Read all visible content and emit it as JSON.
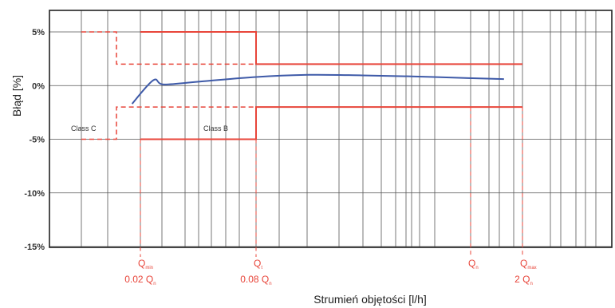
{
  "chart_data": {
    "type": "line",
    "xlabel": "Strumień objętości [l/h]",
    "ylabel": "Błąd [%]",
    "ylim": [
      -15,
      7
    ],
    "x_scale": "log",
    "yticks": [
      "5%",
      "0%",
      "-5%",
      "-10%",
      "-15%"
    ],
    "ytick_values": [
      5,
      0,
      -5,
      -10,
      -15
    ],
    "grid": true,
    "curve": {
      "color": "#3e5aa8",
      "points": [
        [
          -0.7,
          -1.7
        ],
        [
          -0.58,
          0.5
        ],
        [
          -0.52,
          0.1
        ],
        [
          -0.3,
          0.4
        ],
        [
          0,
          0.8
        ],
        [
          0.3,
          1.0
        ],
        [
          0.6,
          0.95
        ],
        [
          0.9,
          0.85
        ],
        [
          1.2,
          0.7
        ],
        [
          1.4,
          0.6
        ]
      ]
    },
    "limits": {
      "color": "#e8453a",
      "class_c": {
        "label": "Class C",
        "upper": 5,
        "lower": -5
      },
      "class_b": {
        "label": "Class B",
        "upper_low": 5,
        "upper_high": 2,
        "lower_low": -5,
        "lower_high": -2
      }
    },
    "markers": [
      {
        "label": "Q",
        "sub": "min",
        "value": "0.02 Q",
        "value_sub": "n"
      },
      {
        "label": "Q",
        "sub": "t",
        "value": "0.08 Q",
        "value_sub": "n"
      },
      {
        "label": "Q",
        "sub": "n",
        "value": "",
        "value_sub": ""
      },
      {
        "label": "Q",
        "sub": "max",
        "value": "2 Q",
        "value_sub": "n"
      }
    ]
  }
}
